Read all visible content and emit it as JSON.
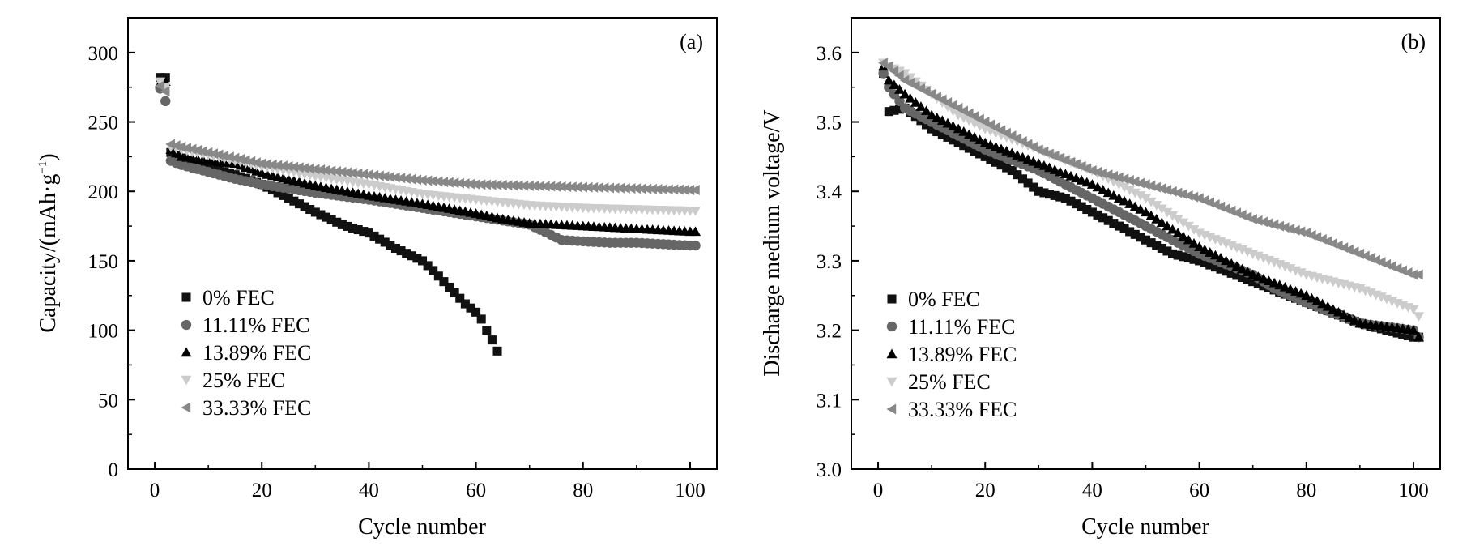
{
  "chart_data": [
    {
      "type": "scatter",
      "panel_label": "(a)",
      "xlabel": "Cycle number",
      "ylabel": {
        "main": "Capacity/(mAh·g",
        "sup": "−1",
        "end": ")"
      },
      "xlim": [
        -5,
        105
      ],
      "ylim": [
        0,
        325
      ],
      "xticks": [
        0,
        20,
        40,
        60,
        80,
        100
      ],
      "yticks": [
        0,
        50,
        100,
        150,
        200,
        250,
        300
      ],
      "grid": false,
      "legend_position": "lower-left",
      "series": [
        {
          "name": "0% FEC",
          "marker": "square",
          "color": "#111111",
          "x": [
            1,
            2,
            3,
            5,
            10,
            15,
            20,
            25,
            30,
            35,
            40,
            45,
            50,
            52,
            55,
            58,
            60,
            61,
            62,
            63,
            64
          ],
          "y": [
            282,
            282,
            228,
            224,
            217,
            212,
            205,
            195,
            185,
            176,
            170,
            159,
            150,
            143,
            131,
            119,
            113,
            108,
            100,
            93,
            85
          ]
        },
        {
          "name": "11.11% FEC",
          "marker": "circle",
          "color": "#666666",
          "x": [
            1,
            2,
            3,
            5,
            10,
            15,
            20,
            30,
            40,
            50,
            60,
            70,
            76,
            80,
            85,
            90,
            95,
            100,
            101
          ],
          "y": [
            274,
            265,
            222,
            219,
            214,
            209,
            205,
            199,
            194,
            188,
            182,
            176,
            165,
            164,
            163,
            163,
            162,
            161,
            161
          ]
        },
        {
          "name": "13.89% FEC",
          "marker": "triangle-up",
          "color": "#000000",
          "x": [
            1,
            2,
            3,
            5,
            10,
            15,
            20,
            30,
            40,
            50,
            60,
            65,
            70,
            75,
            80,
            85,
            90,
            95,
            100,
            101
          ],
          "y": [
            278,
            279,
            230,
            225,
            222,
            220,
            213,
            204,
            197,
            191,
            184,
            180,
            177,
            176,
            175,
            174,
            173,
            172,
            171,
            171
          ]
        },
        {
          "name": "25% FEC",
          "marker": "triangle-down",
          "color": "#cccccc",
          "x": [
            1,
            2,
            3,
            5,
            10,
            15,
            20,
            30,
            40,
            50,
            60,
            70,
            80,
            90,
            100,
            101
          ],
          "y": [
            279,
            275,
            232,
            230,
            226,
            222,
            218,
            211,
            205,
            198,
            194,
            190,
            188,
            187,
            186,
            186
          ]
        },
        {
          "name": "33.33% FEC",
          "marker": "triangle-left",
          "color": "#888888",
          "x": [
            1,
            2,
            3,
            5,
            10,
            15,
            20,
            30,
            40,
            50,
            60,
            70,
            80,
            90,
            100,
            101
          ],
          "y": [
            276,
            272,
            234,
            232,
            228,
            224,
            220,
            216,
            212,
            208,
            205,
            204,
            203,
            202,
            201,
            201
          ]
        }
      ]
    },
    {
      "type": "scatter",
      "panel_label": "(b)",
      "xlabel": "Cycle number",
      "ylabel": {
        "main": "Discharge medium voltage/V",
        "sup": "",
        "end": ""
      },
      "xlim": [
        -5,
        105
      ],
      "ylim": [
        3.0,
        3.65
      ],
      "xticks": [
        0,
        20,
        40,
        60,
        80,
        100
      ],
      "yticks": [
        3.0,
        3.1,
        3.2,
        3.3,
        3.4,
        3.5,
        3.6
      ],
      "grid": false,
      "legend_position": "lower-left",
      "series": [
        {
          "name": "0% FEC",
          "marker": "square",
          "color": "#111111",
          "x": [
            1,
            2,
            5,
            10,
            15,
            20,
            25,
            30,
            35,
            40,
            45,
            50,
            55,
            60,
            70,
            80,
            90,
            100,
            101
          ],
          "y": [
            3.57,
            3.515,
            3.52,
            3.49,
            3.47,
            3.45,
            3.43,
            3.4,
            3.39,
            3.37,
            3.35,
            3.33,
            3.31,
            3.3,
            3.27,
            3.24,
            3.21,
            3.19,
            3.19
          ]
        },
        {
          "name": "11.11% FEC",
          "marker": "circle",
          "color": "#666666",
          "x": [
            1,
            2,
            5,
            10,
            15,
            20,
            30,
            40,
            50,
            60,
            70,
            74,
            80,
            90,
            100,
            101
          ],
          "y": [
            3.57,
            3.55,
            3.52,
            3.5,
            3.48,
            3.46,
            3.43,
            3.39,
            3.35,
            3.31,
            3.28,
            3.26,
            3.24,
            3.21,
            3.2,
            3.19
          ]
        },
        {
          "name": "13.89% FEC",
          "marker": "triangle-up",
          "color": "#000000",
          "x": [
            1,
            2,
            5,
            10,
            15,
            20,
            30,
            40,
            50,
            60,
            70,
            80,
            90,
            100,
            101
          ],
          "y": [
            3.58,
            3.56,
            3.54,
            3.51,
            3.49,
            3.47,
            3.44,
            3.41,
            3.37,
            3.32,
            3.28,
            3.25,
            3.21,
            3.2,
            3.19
          ]
        },
        {
          "name": "25% FEC",
          "marker": "triangle-down",
          "color": "#cccccc",
          "x": [
            1,
            2,
            5,
            10,
            15,
            20,
            30,
            40,
            50,
            60,
            70,
            80,
            90,
            100,
            101
          ],
          "y": [
            3.585,
            3.58,
            3.57,
            3.54,
            3.51,
            3.49,
            3.46,
            3.43,
            3.39,
            3.34,
            3.31,
            3.28,
            3.26,
            3.23,
            3.22
          ]
        },
        {
          "name": "33.33% FEC",
          "marker": "triangle-left",
          "color": "#888888",
          "x": [
            1,
            2,
            5,
            10,
            15,
            20,
            30,
            40,
            50,
            60,
            70,
            80,
            90,
            100,
            101
          ],
          "y": [
            3.585,
            3.58,
            3.56,
            3.54,
            3.52,
            3.5,
            3.46,
            3.43,
            3.41,
            3.39,
            3.36,
            3.34,
            3.31,
            3.28,
            3.28
          ]
        }
      ]
    }
  ]
}
